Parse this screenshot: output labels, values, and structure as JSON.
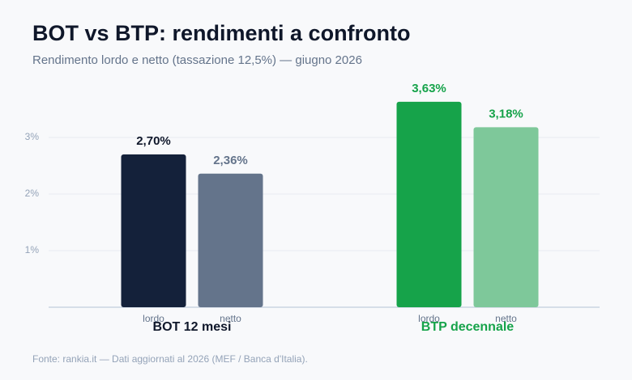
{
  "chart_data": {
    "type": "bar",
    "title": "BOT vs BTP: rendimenti a confronto",
    "subtitle": "Rendimento lordo e netto (tassazione 12,5%) — giugno 2026",
    "categories": [
      "BOT 12 mesi",
      "BTP decennale"
    ],
    "category_colors": [
      "#0f172a",
      "#16a34a"
    ],
    "series": [
      {
        "name": "lordo",
        "colors": [
          "#14213a",
          "#16a34a"
        ],
        "label_colors": [
          "#0f172a",
          "#16a34a"
        ],
        "values": [
          2.7,
          3.63
        ],
        "value_labels": [
          "2,70%",
          "3,63%"
        ]
      },
      {
        "name": "netto",
        "colors": [
          "#64748b",
          "#7ec89a"
        ],
        "label_colors": [
          "#64748b",
          "#16a34a"
        ],
        "values": [
          2.36,
          3.18
        ],
        "value_labels": [
          "2,36%",
          "3,18%"
        ]
      }
    ],
    "ylim": [
      0,
      4
    ],
    "yticks": [
      {
        "value": 1,
        "label": "1%"
      },
      {
        "value": 2,
        "label": "2%"
      },
      {
        "value": 3,
        "label": "3%"
      }
    ],
    "grid": true,
    "footnote": "Fonte: rankia.it — Dati aggiornati al 2026 (MEF / Banca d'Italia)."
  }
}
